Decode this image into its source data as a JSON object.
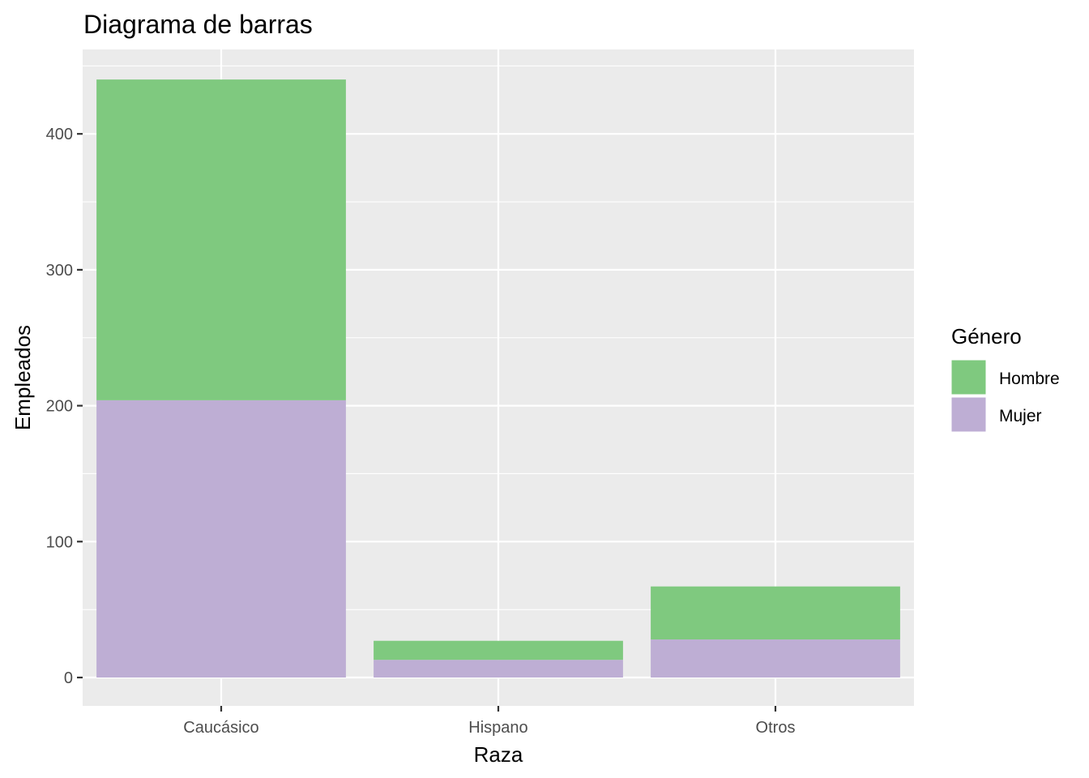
{
  "chart_data": {
    "type": "bar",
    "stacked": true,
    "title": "Diagrama de barras",
    "xlabel": "Raza",
    "ylabel": "Empleados",
    "categories": [
      "Caucásico",
      "Hispano",
      "Otros"
    ],
    "series": [
      {
        "name": "Hombre",
        "values": [
          236,
          14,
          39
        ],
        "color": "#7FC97F"
      },
      {
        "name": "Mujer",
        "values": [
          204,
          13,
          28
        ],
        "color": "#BEAED4"
      }
    ],
    "ylim": [
      0,
      460
    ],
    "yticks": [
      0,
      100,
      200,
      300,
      400
    ],
    "grid": true,
    "legend": {
      "title": "Género",
      "placement": "right"
    },
    "panel_background": "#EBEBEB"
  }
}
